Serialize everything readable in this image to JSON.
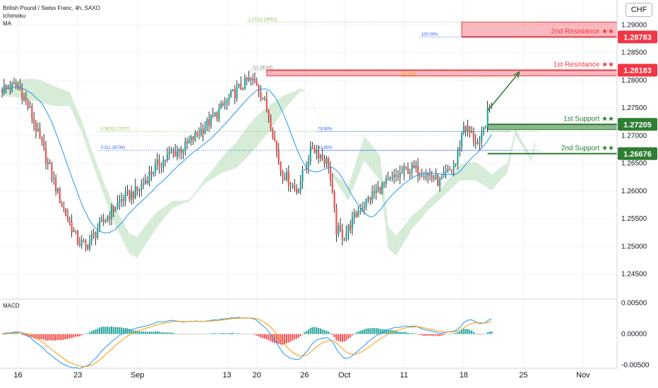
{
  "header": {
    "symbol": "British Pound / Swiss Franc, 4h, SAXO",
    "indicators": [
      "Ichimoku",
      "MA"
    ],
    "currency": "CHF"
  },
  "colors": {
    "up": "#26a69a",
    "down": "#ef5350",
    "wick": "#000000",
    "ma": "#2196f3",
    "resistance": "#f23645",
    "support": "#2e7d32",
    "fib_382": "#8bc34a",
    "fib_50": "#2962ff",
    "cloud_green": "#c8e6c9",
    "cloud_red": "#ffcdd2",
    "macd_line": "#2196f3",
    "signal_line": "#ff9800"
  },
  "chart_data": {
    "type": "candlestick",
    "price_axis": {
      "ticks": [
        "1.29000",
        "1.28500",
        "1.28000",
        "1.27500",
        "1.27000",
        "1.26500",
        "1.26000",
        "1.25500",
        "1.25000",
        "1.24500"
      ],
      "range": [
        1.2405,
        1.2945
      ]
    },
    "time_axis": {
      "ticks": [
        {
          "label": "16",
          "bar": 8
        },
        {
          "label": "23",
          "bar": 38
        },
        {
          "label": "Sep",
          "bar": 68
        },
        {
          "label": "13",
          "bar": 113
        },
        {
          "label": "20",
          "bar": 128
        },
        {
          "label": "26",
          "bar": 152
        },
        {
          "label": "Oct",
          "bar": 172
        },
        {
          "label": "11",
          "bar": 202
        },
        {
          "label": "18",
          "bar": 232
        },
        {
          "label": "25",
          "bar": 262
        },
        {
          "label": "Nov",
          "bar": 292
        }
      ],
      "bar_count": 308
    },
    "levels": [
      {
        "name": "2nd Resistance ★★",
        "price": "1.28783",
        "value": 1.28783,
        "zone": [
          1.28783,
          1.29052
        ],
        "kind": "resistance"
      },
      {
        "name": "1st Resistance ★★",
        "price": "1.28183",
        "value": 1.28183,
        "zone": [
          1.2808,
          1.28183
        ],
        "kind": "resistance"
      },
      {
        "name": "1st Support ★★",
        "price": "1.27205",
        "value": 1.27205,
        "zone": [
          1.2711,
          1.27205
        ],
        "kind": "support"
      },
      {
        "name": "2nd Support ★★",
        "price": "1.26676",
        "value": 1.26676,
        "kind": "support"
      }
    ],
    "fib_lines": [
      {
        "label": "1.272(1.29052)",
        "value": 1.29052,
        "from_bar": 123,
        "color": "#8bc34a"
      },
      {
        "label": "100.00%",
        "value": 1.28783,
        "from_bar": 210,
        "color": "#2962ff"
      },
      {
        "label": "61.80%",
        "value": 1.2806,
        "from_bar": 200,
        "color": "#ff9800"
      },
      {
        "label": "0.382(1.27077)",
        "value": 1.27077,
        "from_bar": 49,
        "color": "#8bc34a"
      },
      {
        "label": "0.5(1.26736)",
        "value": 1.26736,
        "from_bar": 49,
        "color": "#2962ff"
      },
      {
        "label": "1(1.28183)",
        "value": 1.28183,
        "from_bar": 125,
        "color": "#888888"
      },
      {
        "label": "78.60%",
        "value": 1.27077,
        "from_bar": 158,
        "color": "#2962ff"
      },
      {
        "label": "61.80%",
        "value": 1.26736,
        "from_bar": 158,
        "color": "#2962ff"
      }
    ],
    "projection": {
      "from_bar": 244,
      "from_value": 1.2745,
      "to_bar": 260,
      "to_value": 1.2815
    },
    "price_path": [
      [
        0,
        1.2785
      ],
      [
        8,
        1.279
      ],
      [
        14,
        1.2745
      ],
      [
        22,
        1.266
      ],
      [
        30,
        1.2575
      ],
      [
        38,
        1.251
      ],
      [
        42,
        1.25
      ],
      [
        52,
        1.255
      ],
      [
        60,
        1.2585
      ],
      [
        68,
        1.26
      ],
      [
        76,
        1.264
      ],
      [
        84,
        1.2665
      ],
      [
        92,
        1.268
      ],
      [
        100,
        1.271
      ],
      [
        108,
        1.274
      ],
      [
        116,
        1.2775
      ],
      [
        124,
        1.28
      ],
      [
        128,
        1.2795
      ],
      [
        134,
        1.274
      ],
      [
        140,
        1.264
      ],
      [
        148,
        1.26
      ],
      [
        156,
        1.268
      ],
      [
        164,
        1.265
      ],
      [
        168,
        1.253
      ],
      [
        172,
        1.252
      ],
      [
        180,
        1.257
      ],
      [
        188,
        1.26
      ],
      [
        196,
        1.262
      ],
      [
        204,
        1.264
      ],
      [
        212,
        1.2635
      ],
      [
        220,
        1.2615
      ],
      [
        228,
        1.265
      ],
      [
        232,
        1.272
      ],
      [
        236,
        1.27
      ],
      [
        240,
        1.268
      ],
      [
        244,
        1.274
      ],
      [
        246,
        1.2762
      ]
    ],
    "macd": {
      "label": "MACD",
      "ticks": [
        "0.00500",
        "0.00000",
        "-0.00500"
      ],
      "range": [
        -0.0055,
        0.0055
      ]
    }
  }
}
